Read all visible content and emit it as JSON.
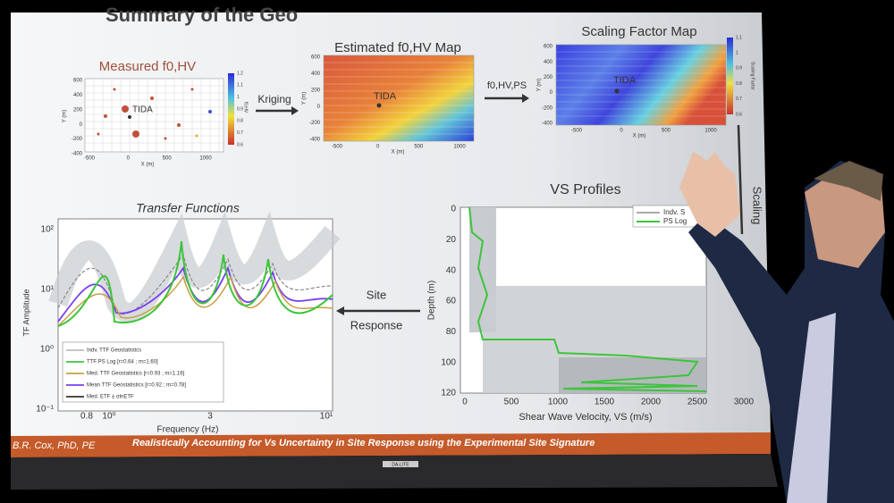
{
  "slide": {
    "title": "Summary of the Geo",
    "measured_map": {
      "title": "Measured f0,HV",
      "x_label": "X (m)",
      "y_label": "Y (m)",
      "x_ticks": [
        "-500",
        "0",
        "500",
        "1000"
      ],
      "y_ticks": [
        "600",
        "400",
        "200",
        "0",
        "-200",
        "-400"
      ],
      "colorbar_ticks": [
        "1.2",
        "1.1",
        "1",
        "0.9",
        "0.8",
        "0.7",
        "0.6"
      ],
      "colorbar_label": "f0,HV",
      "site": "TIDA"
    },
    "estimated_map": {
      "title": "Estimated f0,HV Map",
      "x_label": "X (m)",
      "y_label": "Y (m)",
      "x_ticks": [
        "-500",
        "0",
        "500",
        "1000"
      ],
      "y_ticks": [
        "600",
        "400",
        "200",
        "0",
        "-200",
        "-400"
      ],
      "site": "TIDA"
    },
    "scaling_map": {
      "title": "Scaling Factor Map",
      "x_label": "X (m)",
      "y_label": "Y (m)",
      "x_ticks": [
        "-500",
        "0",
        "500",
        "1000"
      ],
      "y_ticks": [
        "600",
        "400",
        "200",
        "0",
        "-200",
        "-400"
      ],
      "colorbar_ticks": [
        "1.1",
        "1",
        "0.9",
        "0.8",
        "0.7",
        "0.6"
      ],
      "colorbar_label": "Scaling Factor",
      "site": "TIDA"
    },
    "arrows": {
      "kriging": "Kriging",
      "ps": "f0,HV,PS",
      "scaling": "Scaling",
      "site": "Site",
      "response": "Response"
    },
    "transfer_functions": {
      "title": "Transfer Functions",
      "y_label": "TF Amplitude",
      "x_label": "Frequency (Hz)",
      "y_ticks": [
        "10²",
        "10¹",
        "10⁰",
        "10⁻¹"
      ],
      "x_ticks": [
        "0.8",
        "10⁰",
        "3",
        "10¹"
      ],
      "legend": [
        "Indv. TTF Geostatistics",
        "TTF PS Log [r=0.64 ; m=1.60]",
        "Med. TTF Geostatistics [r=0.93 ; m=1.16]",
        "Mean TTF Geostatistics [r=0.92 ; m=0.78]",
        "Med. ETF ± σlnETF"
      ]
    },
    "vs_profiles": {
      "title": "VS Profiles",
      "y_label": "Depth (m)",
      "x_label": "Shear Wave Velocity, VS (m/s)",
      "y_ticks": [
        "0",
        "20",
        "40",
        "60",
        "80",
        "100",
        "120"
      ],
      "x_ticks": [
        "0",
        "500",
        "1000",
        "1500",
        "2000",
        "2500",
        "3000"
      ],
      "legend": [
        "Indv. S",
        "PS Log"
      ]
    },
    "footer": {
      "author": "B.R. Cox, PhD, PE",
      "talk": "Realistically Accounting for Vs Uncertainty in Site Response using the Experimental Site Signature"
    },
    "brand": "DA-LITE"
  }
}
